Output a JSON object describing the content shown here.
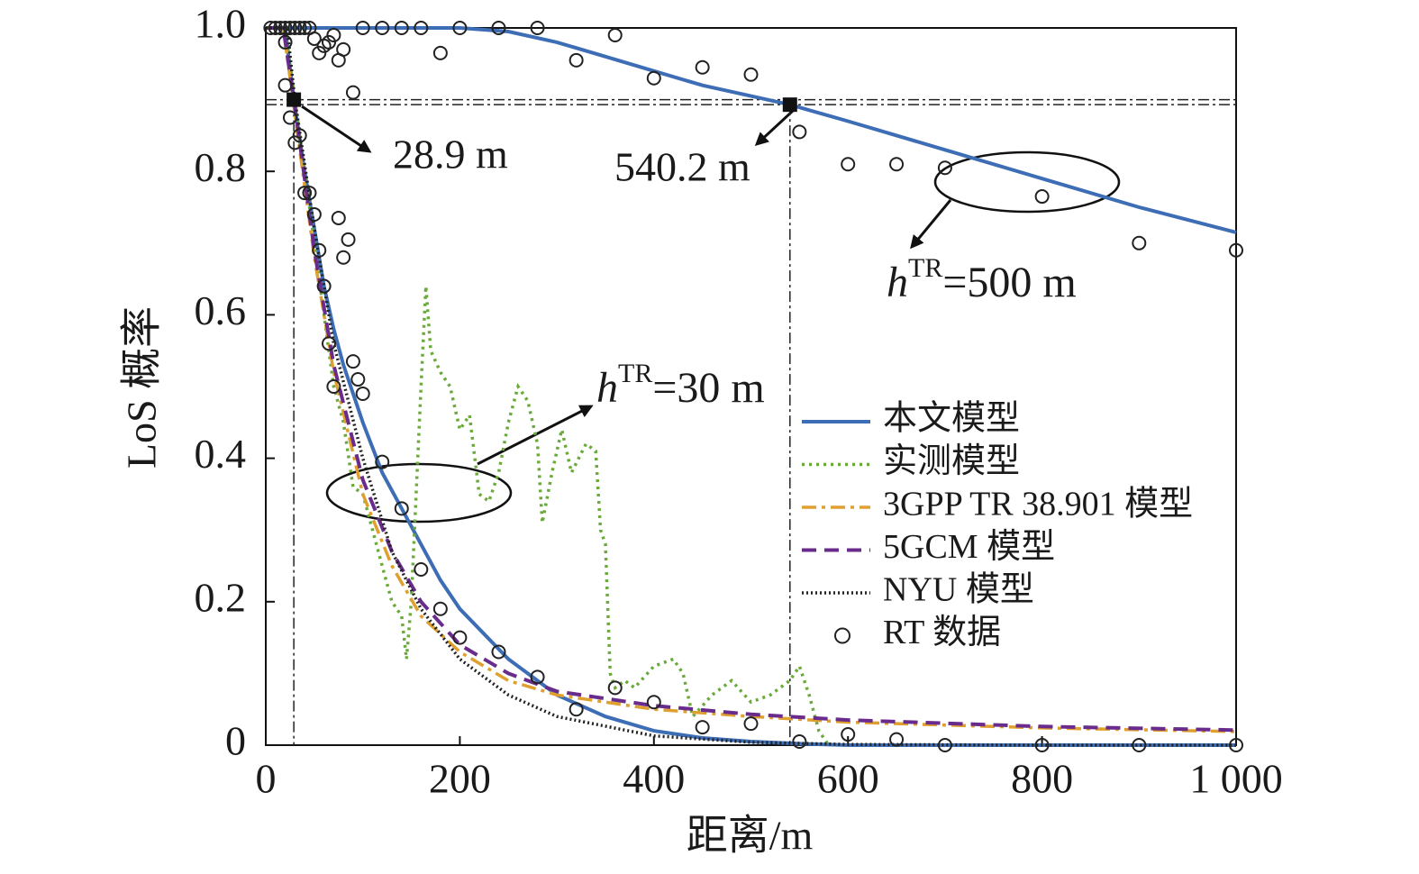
{
  "chart_data": {
    "type": "line",
    "xlabel": "距离/m",
    "ylabel": "LoS 概率",
    "xlim": [
      0,
      1000
    ],
    "ylim": [
      0,
      1
    ],
    "xticks": [
      0,
      200,
      400,
      600,
      800,
      {
        "value": 1000,
        "label": "1 000"
      }
    ],
    "yticks": [
      0,
      0.2,
      0.4,
      0.6,
      0.8,
      {
        "value": 1,
        "label": "1.0"
      }
    ],
    "series": [
      {
        "name": "本文模型",
        "color": "#3d6db5",
        "dash": "solid",
        "x": [
          0,
          20,
          28.9,
          40,
          50,
          60,
          70,
          80,
          100,
          120,
          140,
          160,
          180,
          200,
          250,
          300,
          350,
          400,
          450,
          500,
          550,
          600,
          1000,
          null,
          0,
          200,
          250,
          300,
          350,
          400,
          450,
          500,
          540.2,
          600,
          700,
          800,
          900,
          1000
        ],
        "values": [
          1,
          1,
          0.9,
          0.8,
          0.72,
          0.64,
          0.58,
          0.53,
          0.45,
          0.38,
          0.33,
          0.28,
          0.23,
          0.19,
          0.12,
          0.07,
          0.04,
          0.02,
          0.01,
          0.005,
          0.002,
          0,
          0,
          null,
          1,
          1,
          0.995,
          0.98,
          0.96,
          0.94,
          0.92,
          0.905,
          0.893,
          0.87,
          0.83,
          0.79,
          0.75,
          0.715
        ]
      },
      {
        "name": "实测模型",
        "color": "#6aaa3a",
        "dash": "dotted",
        "x": [
          20,
          30,
          50,
          70,
          80,
          90,
          100,
          110,
          120,
          130,
          140,
          145,
          150,
          155,
          160,
          165,
          170,
          180,
          190,
          200,
          210,
          220,
          230,
          240,
          250,
          260,
          270,
          280,
          285,
          295,
          305,
          315,
          330,
          340,
          345,
          350,
          355,
          360,
          370,
          380,
          400,
          420,
          430,
          440,
          460,
          480,
          500,
          520,
          540,
          550,
          560,
          570,
          580
        ],
        "values": [
          1,
          0.9,
          0.7,
          0.5,
          0.45,
          0.36,
          0.35,
          0.3,
          0.25,
          0.2,
          0.18,
          0.12,
          0.2,
          0.35,
          0.5,
          0.64,
          0.55,
          0.52,
          0.5,
          0.44,
          0.46,
          0.35,
          0.34,
          0.38,
          0.45,
          0.5,
          0.48,
          0.42,
          0.31,
          0.38,
          0.44,
          0.38,
          0.42,
          0.41,
          0.3,
          0.28,
          0.1,
          0.08,
          0.09,
          0.08,
          0.11,
          0.12,
          0.1,
          0.04,
          0.07,
          0.09,
          0.06,
          0.07,
          0.09,
          0.11,
          0.07,
          0.02,
          0
        ]
      },
      {
        "name": "3GPP TR 38.901 模型",
        "color": "#e0a030",
        "dash": "dashdot",
        "x": [
          0,
          18,
          30,
          50,
          70,
          100,
          130,
          160,
          200,
          250,
          300,
          400,
          500,
          600,
          800,
          1000
        ],
        "values": [
          1,
          1,
          0.88,
          0.68,
          0.52,
          0.35,
          0.25,
          0.18,
          0.13,
          0.09,
          0.07,
          0.05,
          0.04,
          0.032,
          0.024,
          0.019
        ]
      },
      {
        "name": "5GCM 模型",
        "color": "#6a2c8c",
        "dash": "dashed",
        "x": [
          0,
          18,
          30,
          50,
          70,
          100,
          130,
          160,
          200,
          250,
          300,
          400,
          500,
          600,
          800,
          1000
        ],
        "values": [
          1,
          1,
          0.89,
          0.69,
          0.53,
          0.37,
          0.27,
          0.2,
          0.14,
          0.1,
          0.075,
          0.055,
          0.043,
          0.035,
          0.026,
          0.021
        ]
      },
      {
        "name": "NYU 模型",
        "color": "#222222",
        "dash": "fine",
        "x": [
          0,
          22,
          30,
          50,
          70,
          100,
          130,
          160,
          200,
          250,
          300,
          400,
          500,
          600,
          800,
          1000
        ],
        "values": [
          1,
          1,
          0.9,
          0.72,
          0.56,
          0.4,
          0.27,
          0.19,
          0.12,
          0.07,
          0.04,
          0.013,
          0.004,
          0.001,
          0,
          0
        ]
      },
      {
        "name": "RT 数据",
        "type": "scatter",
        "color": "#222222",
        "x": [
          5,
          10,
          15,
          20,
          25,
          30,
          35,
          40,
          45,
          50,
          55,
          60,
          65,
          70,
          75,
          80,
          90,
          100,
          120,
          140,
          160,
          180,
          200,
          240,
          280,
          320,
          360,
          400,
          450,
          500,
          550,
          600,
          650,
          700,
          800,
          900,
          1000,
          20,
          20,
          25,
          30,
          35,
          40,
          45,
          50,
          55,
          60,
          65,
          70,
          75,
          80,
          85,
          90,
          95,
          100,
          120,
          140,
          160,
          180,
          200,
          240,
          280,
          320,
          360,
          400,
          450,
          500,
          550,
          600,
          650,
          700,
          800,
          900,
          1000
        ],
        "values": [
          1,
          1,
          1,
          1,
          1,
          1,
          1,
          1,
          1,
          0.985,
          0.965,
          0.975,
          0.98,
          0.99,
          0.955,
          0.97,
          0.91,
          1,
          1,
          1,
          1,
          0.965,
          1,
          1,
          1,
          0.955,
          0.99,
          0.93,
          0.945,
          0.935,
          0.855,
          0.81,
          0.81,
          0.805,
          0.765,
          0.7,
          0.69,
          0.98,
          0.92,
          0.875,
          0.84,
          0.85,
          0.77,
          0.77,
          0.74,
          0.69,
          0.64,
          0.56,
          0.5,
          0.735,
          0.68,
          0.705,
          0.535,
          0.51,
          0.49,
          0.395,
          0.33,
          0.245,
          0.19,
          0.15,
          0.13,
          0.095,
          0.05,
          0.08,
          0.06,
          0.025,
          0.03,
          0.005,
          0.015,
          0.008,
          0,
          0,
          0,
          0
        ]
      }
    ],
    "markers": [
      {
        "x": 28.9,
        "y": 0.9,
        "label": "28.9 m"
      },
      {
        "x": 540.2,
        "y": 0.893,
        "label": "540.2 m"
      }
    ],
    "annotations": [
      {
        "base": "h",
        "superscript": "TR",
        "text": "=500 m"
      },
      {
        "base": "h",
        "superscript": "TR",
        "text": "=30 m"
      }
    ]
  }
}
